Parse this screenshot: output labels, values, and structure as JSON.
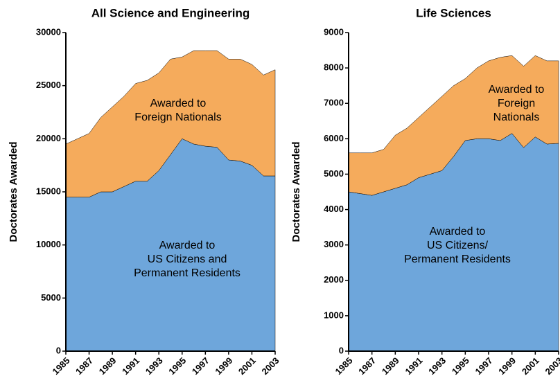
{
  "chart_data": [
    {
      "type": "area",
      "stacked": true,
      "title": "All Science and Engineering",
      "y_label": "Doctorates  Awarded",
      "x": [
        1985,
        1986,
        1987,
        1988,
        1989,
        1990,
        1991,
        1992,
        1993,
        1994,
        1995,
        1996,
        1997,
        1998,
        1999,
        2000,
        2001,
        2002,
        2003
      ],
      "xlim": [
        1985,
        2003
      ],
      "xticks": [
        1985,
        1987,
        1989,
        1991,
        1993,
        1995,
        1997,
        1999,
        2001,
        2003
      ],
      "ylim": [
        0,
        30000
      ],
      "yticks": [
        0,
        5000,
        10000,
        15000,
        20000,
        25000,
        30000
      ],
      "series": [
        {
          "name_lines": [
            "Awarded to",
            "US Citizens and",
            "Permanent Residents"
          ],
          "color": "#6ea6db",
          "values": [
            14500,
            14500,
            14500,
            15000,
            15000,
            15500,
            16000,
            16000,
            17000,
            18500,
            20000,
            19500,
            19300,
            19200,
            18000,
            17900,
            17500,
            16500,
            16500
          ]
        },
        {
          "name_lines": [
            "Awarded to",
            "Foreign Nationals"
          ],
          "color": "#f5ab5c",
          "values": [
            5000,
            5500,
            6000,
            7000,
            8000,
            8500,
            9200,
            9500,
            9200,
            9000,
            7700,
            8800,
            9000,
            9100,
            9500,
            9600,
            9500,
            9500,
            10000
          ]
        }
      ]
    },
    {
      "type": "area",
      "stacked": true,
      "title": "Life Sciences",
      "y_label": "Doctorates  Awarded",
      "x": [
        1985,
        1986,
        1987,
        1988,
        1989,
        1990,
        1991,
        1992,
        1993,
        1994,
        1995,
        1996,
        1997,
        1998,
        1999,
        2000,
        2001,
        2002,
        2003
      ],
      "xlim": [
        1985,
        2003
      ],
      "xticks": [
        1985,
        1987,
        1989,
        1991,
        1993,
        1995,
        1997,
        1999,
        2001,
        2003
      ],
      "ylim": [
        0,
        9000
      ],
      "yticks": [
        0,
        1000,
        2000,
        3000,
        4000,
        5000,
        6000,
        7000,
        8000,
        9000
      ],
      "series": [
        {
          "name_lines": [
            "Awarded to",
            "US Citizens/",
            "Permanent Residents"
          ],
          "color": "#6ea6db",
          "values": [
            4500,
            4450,
            4400,
            4500,
            4600,
            4700,
            4900,
            5000,
            5100,
            5500,
            5950,
            6000,
            6000,
            5950,
            6150,
            5750,
            6050,
            5850,
            5870
          ]
        },
        {
          "name_lines": [
            "Awarded to",
            "Foreign",
            "Nationals"
          ],
          "color": "#f5ab5c",
          "values": [
            1100,
            1150,
            1200,
            1200,
            1500,
            1600,
            1700,
            1900,
            2100,
            2000,
            1750,
            2000,
            2200,
            2350,
            2200,
            2300,
            2300,
            2350,
            2330
          ]
        }
      ]
    }
  ]
}
